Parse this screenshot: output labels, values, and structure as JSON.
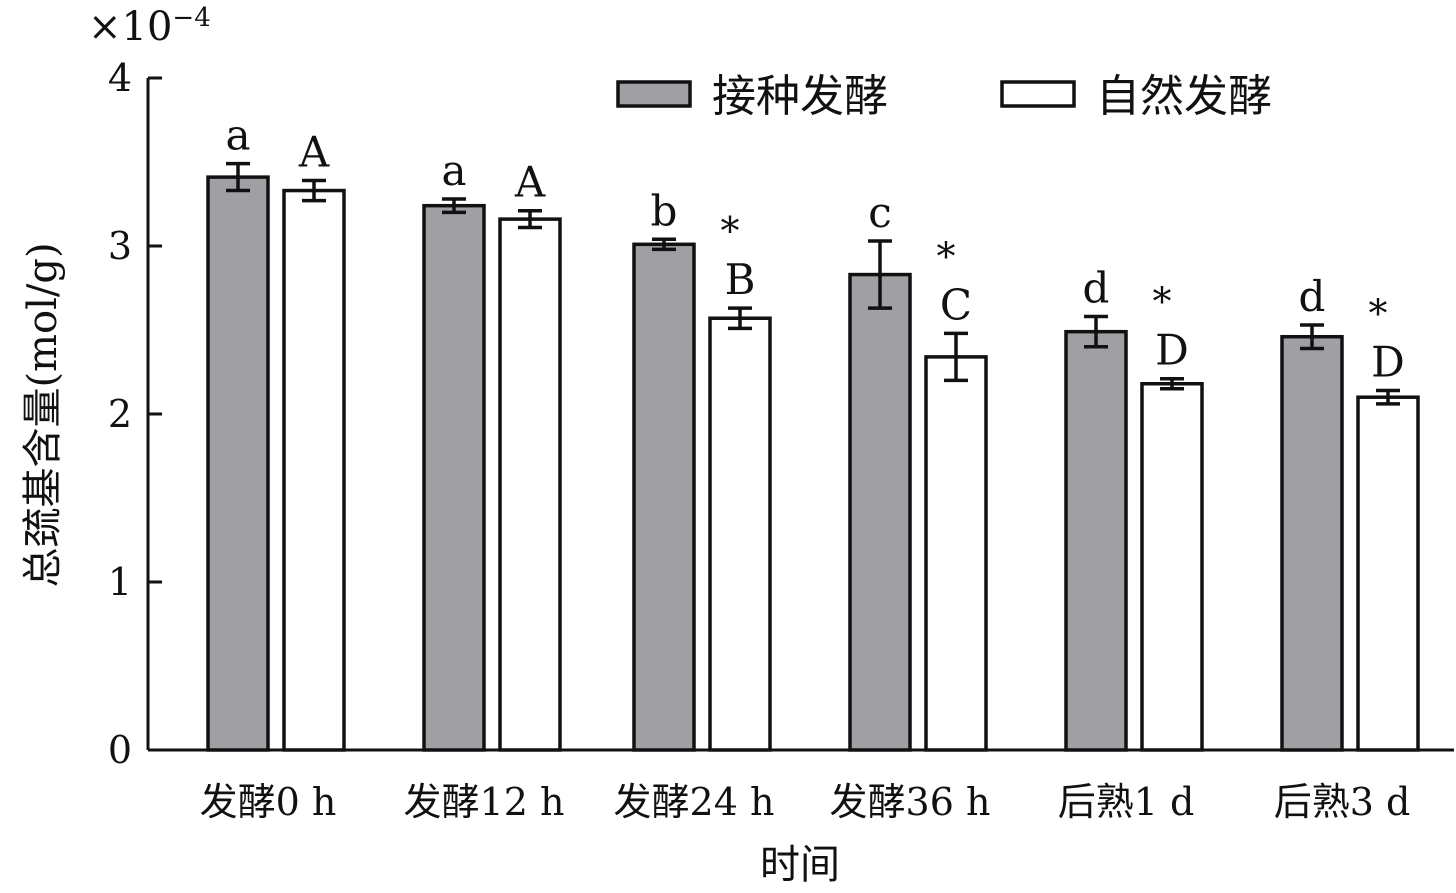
{
  "chart_data": {
    "type": "bar",
    "title": "",
    "xlabel": "时间",
    "ylabel": "总巯基含量(mol/g)",
    "y_multiplier": "×10",
    "y_multiplier_exp": "−4",
    "ylim": [
      0,
      4
    ],
    "yticks": [
      "0",
      "1",
      "2",
      "3",
      "4"
    ],
    "ytick_values": [
      0,
      1,
      2,
      3,
      4
    ],
    "grid": false,
    "legend_position": "top-right",
    "categories": [
      "发酵0 h",
      "发酵12 h",
      "发酵24 h",
      "发酵36 h",
      "后熟1 d",
      "后熟3 d"
    ],
    "series": [
      {
        "name": "接种发酵",
        "color": "#a0a0a4",
        "values": [
          3.41,
          3.24,
          3.01,
          2.83,
          2.49,
          2.46
        ],
        "errors": [
          0.08,
          0.04,
          0.03,
          0.2,
          0.09,
          0.07
        ],
        "letters": [
          "a",
          "a",
          "b",
          "c",
          "d",
          "d"
        ],
        "stars": [
          "",
          "",
          "",
          "",
          "",
          ""
        ]
      },
      {
        "name": "自然发酵",
        "color": "#ffffff",
        "values": [
          3.33,
          3.16,
          2.57,
          2.34,
          2.18,
          2.1
        ],
        "errors": [
          0.06,
          0.05,
          0.06,
          0.14,
          0.03,
          0.04
        ],
        "letters": [
          "A",
          "A",
          "B",
          "C",
          "D",
          "D"
        ],
        "stars": [
          "",
          "",
          "*",
          "*",
          "*",
          "*"
        ]
      }
    ]
  }
}
